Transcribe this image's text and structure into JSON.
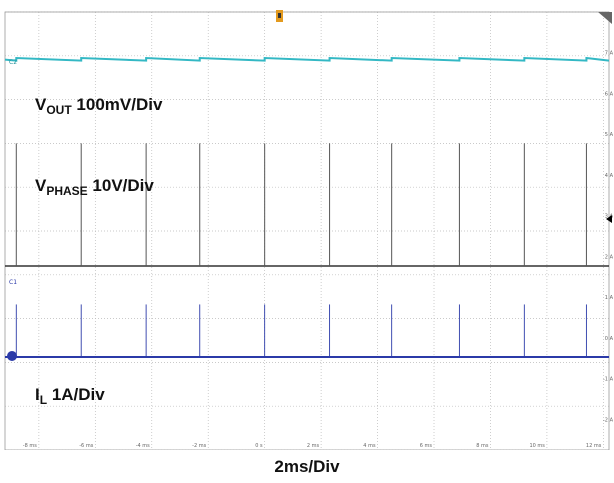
{
  "chart_data": {
    "type": "line",
    "xlabel": "2ms/Div",
    "x_ticks": [
      "-8 ms",
      "-6 ms",
      "-4 ms",
      "-2 ms",
      "0 s",
      "2 ms",
      "4 ms",
      "6 ms",
      "8 ms",
      "10 ms",
      "12 ms"
    ],
    "xlim_ms": [
      -9.2,
      12.2
    ],
    "y_ticks_right": [
      "7 A",
      "6 A",
      "5 A",
      "4 A",
      "3 A",
      "2 A",
      "1 A",
      "0 A",
      "-1 A",
      "-2 A"
    ],
    "grid": true,
    "channel_markers": [
      "C2",
      "C1"
    ],
    "switching_events_ms": [
      -8.8,
      -6.5,
      -4.2,
      -2.3,
      0.0,
      2.3,
      4.5,
      6.9,
      9.2,
      11.4
    ],
    "series": [
      {
        "name": "V",
        "subscript": "OUT",
        "scale": "100mV/Div",
        "color": "#33b8c4",
        "waveform": "sawtooth",
        "ripple_divisions": 0.3
      },
      {
        "name": "V",
        "subscript": "PHASE",
        "scale": "10V/Div",
        "color": "#555555",
        "waveform": "pulse",
        "pulse_height_divisions": 1.4
      },
      {
        "name": "I",
        "subscript": "L",
        "scale": "1A/Div",
        "color": "#2b3aa8",
        "waveform": "pulse",
        "pulse_height_divisions": 0.6
      }
    ]
  }
}
